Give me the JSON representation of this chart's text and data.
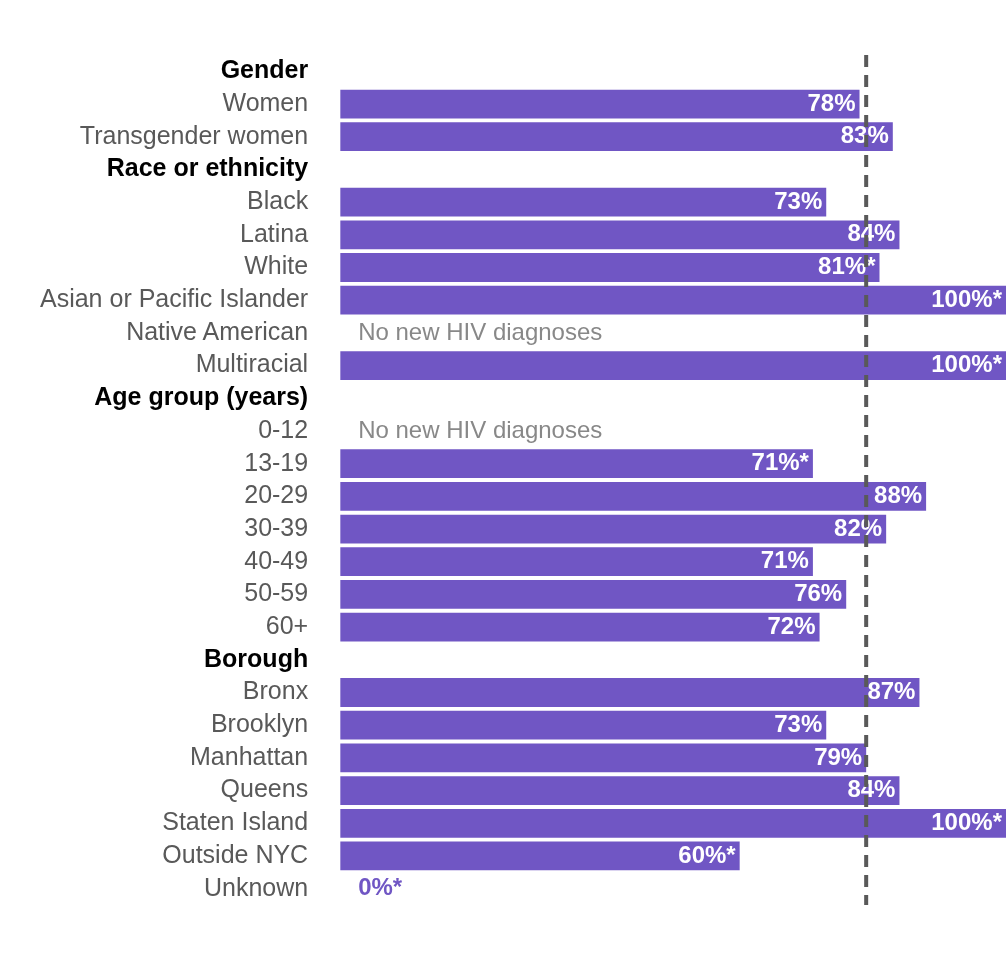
{
  "chart_data": {
    "type": "bar",
    "orientation": "horizontal",
    "categories": [
      "Gender",
      "Women",
      "Transgender women",
      "Race or ethnicity",
      "Black",
      "Latina",
      "White",
      "Asian or Pacific Islander",
      "Native American",
      "Multiracial",
      "Age group (years)",
      "0-12",
      "13-19",
      "20-29",
      "30-39",
      "40-49",
      "50-59",
      "60+",
      "Borough",
      "Bronx",
      "Brooklyn",
      "Manhattan",
      "Queens",
      "Staten Island",
      "Outside NYC",
      "Unknown"
    ],
    "values": [
      null,
      78,
      83,
      null,
      73,
      84,
      81,
      100,
      null,
      100,
      null,
      null,
      71,
      88,
      82,
      71,
      76,
      72,
      null,
      87,
      73,
      79,
      84,
      100,
      60,
      0
    ],
    "value_labels": [
      null,
      "78%",
      "83%",
      null,
      "73%",
      "84%",
      "81%*",
      "100%*",
      "No new HIV diagnoses",
      "100%*",
      null,
      "No new HIV diagnoses",
      "71%*",
      "88%",
      "82%",
      "71%",
      "76%",
      "72%",
      null,
      "87%",
      "73%",
      "79%",
      "84%",
      "100%*",
      "60%*",
      "0%*"
    ],
    "color": "#7056c4",
    "xlim": [
      0,
      100
    ],
    "grid": false,
    "legend": false,
    "tick_labels": "y",
    "ref_lines": [
      {
        "axis": "x",
        "value": 79,
        "color": "#595959",
        "line_style": "dashed"
      }
    ]
  }
}
